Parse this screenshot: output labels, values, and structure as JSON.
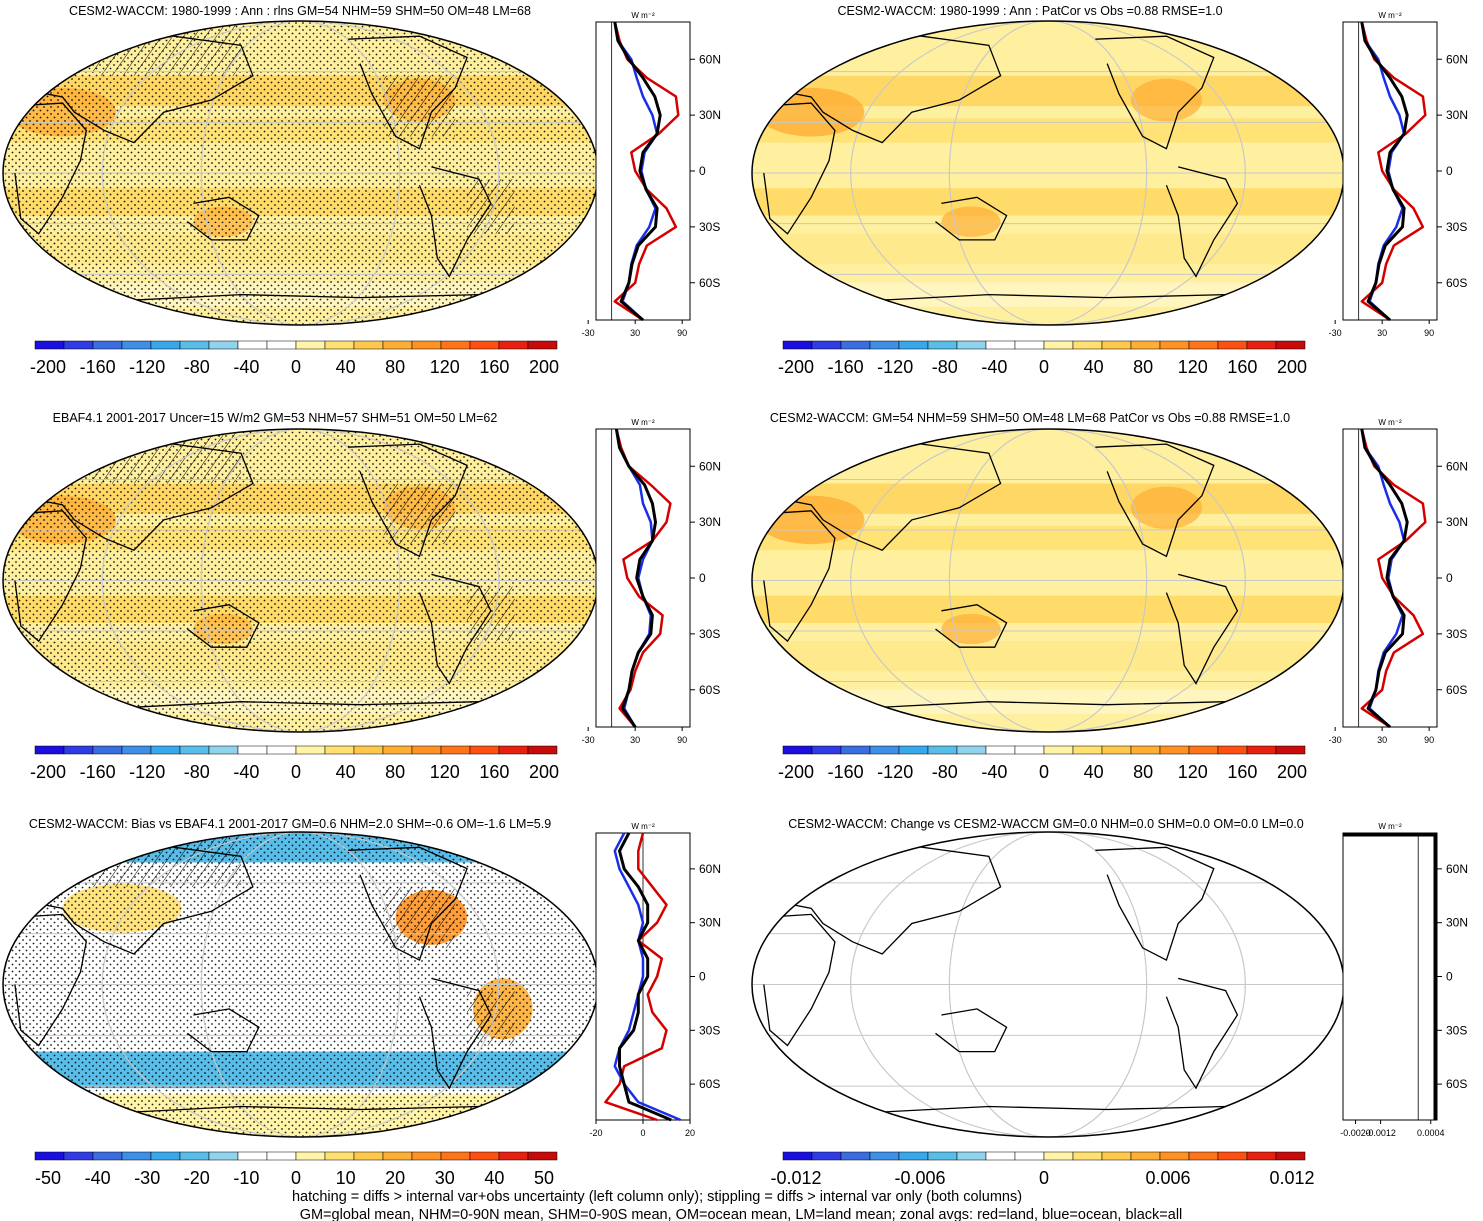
{
  "colors": {
    "land_line": "#d40000",
    "ocean_line": "#1a2ee8",
    "all_line": "#000000",
    "climo_palette": [
      "#1a0fe0",
      "#2f3ce6",
      "#3a6ee0",
      "#3d8fe8",
      "#38a8ec",
      "#58bde8",
      "#8fd3ec",
      "#ffffff",
      "#ffffff",
      "#fff4a8",
      "#ffe070",
      "#ffc84a",
      "#ffae34",
      "#ff9222",
      "#ff7418",
      "#ff5012",
      "#e82010",
      "#c80a0a"
    ],
    "bias_palette": [
      "#1a0fe0",
      "#2f3ce6",
      "#3a6ee0",
      "#3d8fe8",
      "#38a8ec",
      "#58bde8",
      "#8fd3ec",
      "#ffffff",
      "#ffffff",
      "#fff4a8",
      "#ffe070",
      "#ffc84a",
      "#ffae34",
      "#ff9222",
      "#ff7418",
      "#ff5012",
      "#e82010",
      "#c80a0a"
    ]
  },
  "panels": [
    {
      "title": "CESM2-WACCM: 1980-1999 : Ann : rlns GM=54 NHM=59 SHM=50 OM=48 LM=68",
      "hatching": true,
      "stippling": true,
      "fill": "climo",
      "colorbar": [
        "-200",
        "-160",
        "-120",
        "-80",
        "-40",
        "0",
        "40",
        "80",
        "120",
        "160",
        "200"
      ],
      "profile_ticks": [
        "-30",
        "30",
        "90"
      ]
    },
    {
      "title": "CESM2-WACCM: 1980-1999 : Ann : PatCor vs Obs =0.88 RMSE=1.0",
      "hatching": false,
      "stippling": false,
      "fill": "climo",
      "colorbar": [
        "-200",
        "-160",
        "-120",
        "-80",
        "-40",
        "0",
        "40",
        "80",
        "120",
        "160",
        "200"
      ],
      "profile_ticks": [
        "-30",
        "30",
        "90"
      ]
    },
    {
      "title": "EBAF4.1 2001-2017 Uncer=15 W/m2 GM=53 NHM=57 SHM=51 OM=50 LM=62",
      "hatching": true,
      "stippling": true,
      "fill": "climo",
      "colorbar": [
        "-200",
        "-160",
        "-120",
        "-80",
        "-40",
        "0",
        "40",
        "80",
        "120",
        "160",
        "200"
      ],
      "profile_ticks": [
        "-30",
        "30",
        "90"
      ]
    },
    {
      "title": "CESM2-WACCM: GM=54 NHM=59 SHM=50 OM=48 LM=68 PatCor vs Obs =0.88 RMSE=1.0",
      "hatching": false,
      "stippling": false,
      "fill": "climo",
      "colorbar": [
        "-200",
        "-160",
        "-120",
        "-80",
        "-40",
        "0",
        "40",
        "80",
        "120",
        "160",
        "200"
      ],
      "profile_ticks": [
        "-30",
        "30",
        "90"
      ]
    },
    {
      "title": "CESM2-WACCM: Bias vs EBAF4.1 2001-2017 GM=0.6 NHM=2.0 SHM=-0.6 OM=-1.6 LM=5.9",
      "hatching": true,
      "stippling": true,
      "fill": "bias",
      "colorbar": [
        "-50",
        "-40",
        "-30",
        "-20",
        "-10",
        "0",
        "10",
        "20",
        "30",
        "40",
        "50"
      ],
      "profile_ticks": [
        "-20",
        "0",
        "20"
      ]
    },
    {
      "title": "CESM2-WACCM: Change vs CESM2-WACCM GM=0.0 NHM=0.0 SHM=0.0 OM=0.0 LM=0.0",
      "hatching": false,
      "stippling": false,
      "fill": "none",
      "colorbar": [
        "-0.012",
        "-0.006",
        "0",
        "0.006",
        "0.012"
      ],
      "profile_ticks": [
        "-0.0020",
        "-0.0012",
        "0.0004"
      ]
    }
  ],
  "profile_unit": "W m⁻²",
  "lat_labels": [
    "60N",
    "30N",
    "0",
    "30S",
    "60S"
  ],
  "footer": [
    "hatching = diffs > internal var+obs uncertainty (left column only); stippling = diffs > internal var only (both columns)",
    "GM=global mean, NHM=0-90N mean, SHM=0-90S mean, OM=ocean mean, LM=land mean; zonal avgs: red=land, blue=ocean, black=all"
  ],
  "chart_data": [
    {
      "type": "heatmap",
      "title": "CESM2-WACCM: 1980-1999 : Ann : rlns GM=54 NHM=59 SHM=50 OM=48 LM=68",
      "colorbar_ticks": [
        -200,
        -160,
        -120,
        -80,
        -40,
        0,
        40,
        80,
        120,
        160,
        200
      ],
      "zonal_mean": {
        "lat": [
          80,
          70,
          60,
          50,
          40,
          30,
          20,
          10,
          0,
          -10,
          -20,
          -30,
          -40,
          -50,
          -60,
          -70,
          -80
        ],
        "land": [
          4,
          10,
          20,
          45,
          82,
          85,
          60,
          25,
          30,
          45,
          70,
          82,
          45,
          35,
          30,
          4,
          40
        ],
        "ocean": [
          4,
          8,
          25,
          32,
          40,
          52,
          58,
          42,
          38,
          44,
          56,
          48,
          32,
          25,
          22,
          14,
          40
        ],
        "all": [
          4,
          8,
          22,
          40,
          55,
          62,
          58,
          40,
          36,
          44,
          58,
          56,
          34,
          26,
          22,
          12,
          40
        ]
      }
    },
    {
      "type": "heatmap",
      "title": "CESM2-WACCM: 1980-1999 : Ann : PatCor vs Obs =0.88 RMSE=1.0",
      "colorbar_ticks": [
        -200,
        -160,
        -120,
        -80,
        -40,
        0,
        40,
        80,
        120,
        160,
        200
      ],
      "zonal_mean": {
        "lat": [
          80,
          70,
          60,
          50,
          40,
          30,
          20,
          10,
          0,
          -10,
          -20,
          -30,
          -40,
          -50,
          -60,
          -70,
          -80
        ],
        "land": [
          4,
          10,
          20,
          45,
          82,
          85,
          60,
          25,
          30,
          45,
          70,
          82,
          45,
          35,
          30,
          4,
          40
        ],
        "ocean": [
          4,
          8,
          25,
          32,
          40,
          52,
          58,
          42,
          38,
          44,
          56,
          48,
          32,
          25,
          22,
          14,
          40
        ],
        "all": [
          4,
          8,
          22,
          40,
          55,
          62,
          58,
          40,
          36,
          44,
          58,
          56,
          34,
          26,
          22,
          12,
          40
        ]
      }
    },
    {
      "type": "heatmap",
      "title": "EBAF4.1 2001-2017 Uncer=15 W/m2 GM=53 NHM=57 SHM=51 OM=50 LM=62",
      "colorbar_ticks": [
        -200,
        -160,
        -120,
        -80,
        -40,
        0,
        40,
        80,
        120,
        160,
        200
      ],
      "zonal_mean": {
        "lat": [
          80,
          70,
          60,
          50,
          40,
          30,
          20,
          10,
          0,
          -10,
          -20,
          -30,
          -40,
          -50,
          -60,
          -70,
          -80
        ],
        "land": [
          6,
          12,
          22,
          50,
          75,
          70,
          52,
          15,
          20,
          35,
          65,
          62,
          40,
          30,
          24,
          10,
          30
        ],
        "ocean": [
          6,
          10,
          22,
          36,
          40,
          50,
          52,
          40,
          34,
          40,
          50,
          48,
          34,
          26,
          22,
          16,
          30
        ],
        "all": [
          6,
          10,
          22,
          42,
          52,
          56,
          52,
          36,
          32,
          40,
          52,
          50,
          34,
          26,
          22,
          14,
          30
        ]
      }
    },
    {
      "type": "heatmap",
      "title": "CESM2-WACCM: GM=54 NHM=59 SHM=50 OM=48 LM=68 PatCor vs Obs =0.88 RMSE=1.0",
      "colorbar_ticks": [
        -200,
        -160,
        -120,
        -80,
        -40,
        0,
        40,
        80,
        120,
        160,
        200
      ],
      "zonal_mean": {
        "lat": [
          80,
          70,
          60,
          50,
          40,
          30,
          20,
          10,
          0,
          -10,
          -20,
          -30,
          -40,
          -50,
          -60,
          -70,
          -80
        ],
        "land": [
          4,
          10,
          20,
          45,
          82,
          85,
          60,
          25,
          30,
          45,
          70,
          82,
          45,
          35,
          30,
          4,
          40
        ],
        "ocean": [
          4,
          8,
          25,
          32,
          40,
          52,
          58,
          42,
          38,
          44,
          56,
          48,
          32,
          25,
          22,
          14,
          40
        ],
        "all": [
          4,
          8,
          22,
          40,
          55,
          62,
          58,
          40,
          36,
          44,
          58,
          56,
          34,
          26,
          22,
          12,
          40
        ]
      }
    },
    {
      "type": "heatmap",
      "title": "CESM2-WACCM: Bias vs EBAF4.1 2001-2017 GM=0.6 NHM=2.0 SHM=-0.6 OM=-1.6 LM=5.9",
      "colorbar_ticks": [
        -50,
        -40,
        -30,
        -20,
        -10,
        0,
        10,
        20,
        30,
        40,
        50
      ],
      "zonal_mean": {
        "lat": [
          80,
          70,
          60,
          50,
          40,
          30,
          20,
          10,
          0,
          -10,
          -20,
          -30,
          -40,
          -50,
          -60,
          -70,
          -80
        ],
        "land": [
          0,
          -2,
          -2,
          4,
          10,
          6,
          -2,
          8,
          6,
          2,
          4,
          10,
          8,
          -8,
          -10,
          -16,
          6
        ],
        "ocean": [
          -8,
          -12,
          -10,
          -6,
          -2,
          0,
          -2,
          0,
          0,
          -2,
          -4,
          -6,
          -10,
          -12,
          -8,
          -2,
          16
        ],
        "all": [
          -6,
          -10,
          -8,
          -2,
          2,
          2,
          -2,
          2,
          2,
          -2,
          -2,
          -4,
          -10,
          -10,
          -8,
          -6,
          12
        ]
      }
    },
    {
      "type": "heatmap",
      "title": "CESM2-WACCM: Change vs CESM2-WACCM GM=0.0 NHM=0.0 SHM=0.0 OM=0.0 LM=0.0",
      "colorbar_ticks": [
        -0.012,
        -0.006,
        0,
        0.006,
        0.012
      ],
      "zonal_mean": {
        "lat": [
          80,
          -80
        ],
        "land": [
          0,
          0
        ],
        "ocean": [
          0,
          0
        ],
        "all": [
          0,
          0
        ]
      }
    }
  ]
}
